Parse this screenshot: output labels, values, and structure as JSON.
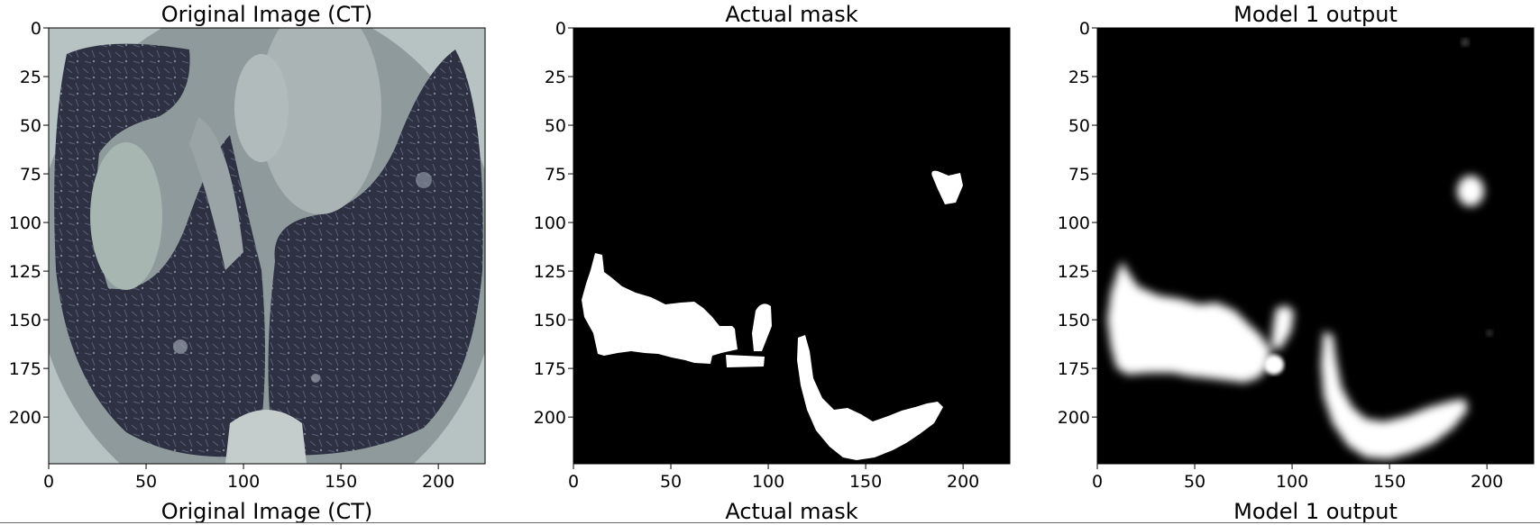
{
  "chart_data": [
    {
      "type": "image",
      "title": "Original Image (CT)",
      "xlim": [
        0,
        224
      ],
      "ylim": [
        224,
        0
      ],
      "xticks": [
        0,
        50,
        100,
        150,
        200
      ],
      "yticks": [
        0,
        25,
        50,
        75,
        100,
        125,
        150,
        175,
        200
      ],
      "colormap": "bone",
      "content": "axial lung CT slice"
    },
    {
      "type": "image",
      "title": "Actual mask",
      "xlim": [
        0,
        224
      ],
      "ylim": [
        224,
        0
      ],
      "xticks": [
        0,
        50,
        100,
        150,
        200
      ],
      "yticks": [
        0,
        25,
        50,
        75,
        100,
        125,
        150,
        175,
        200
      ],
      "colormap": "gray",
      "content": "binary segmentation mask"
    },
    {
      "type": "image",
      "title": "Model 1 output",
      "xlim": [
        0,
        224
      ],
      "ylim": [
        224,
        0
      ],
      "xticks": [
        0,
        50,
        100,
        150,
        200
      ],
      "yticks": [
        0,
        25,
        50,
        75,
        100,
        125,
        150,
        175,
        200
      ],
      "colormap": "bone",
      "content": "predicted segmentation"
    }
  ],
  "next_row_titles": [
    "Original Image (CT)",
    "Actual mask",
    "Model 1 output"
  ],
  "colors": {
    "ct_background": "#2a2e3e",
    "ct_tissue": "#a9b4b4",
    "mask_background": "#000000",
    "mask_foreground": "#ffffff"
  }
}
